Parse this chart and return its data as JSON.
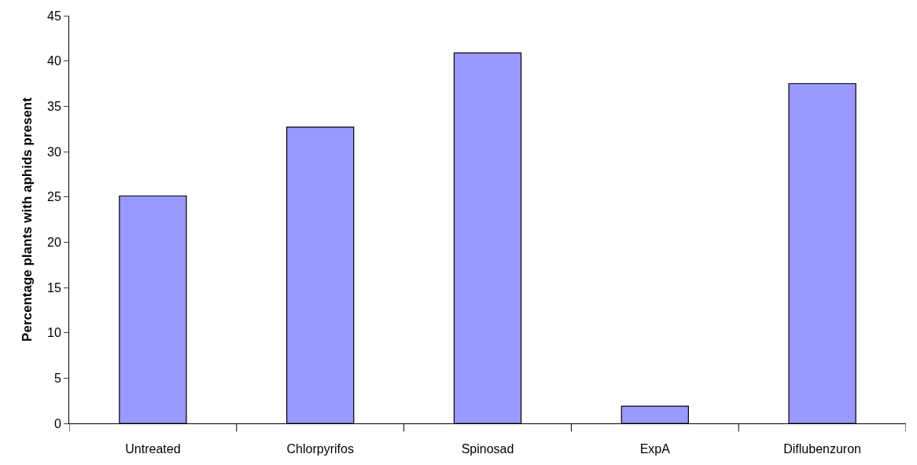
{
  "chart_data": {
    "type": "bar",
    "ylabel": "Percentage plants with aphids present",
    "categories": [
      "Untreated",
      "Chlorpyrifos",
      "Spinosad",
      "ExpA",
      "Diflubenzuron"
    ],
    "values": [
      25.1,
      32.7,
      40.9,
      1.9,
      37.5
    ],
    "color": "#9999ff",
    "ylim": [
      0,
      45
    ],
    "yticks": [
      0,
      5,
      10,
      15,
      20,
      25,
      30,
      35,
      40,
      45
    ]
  }
}
